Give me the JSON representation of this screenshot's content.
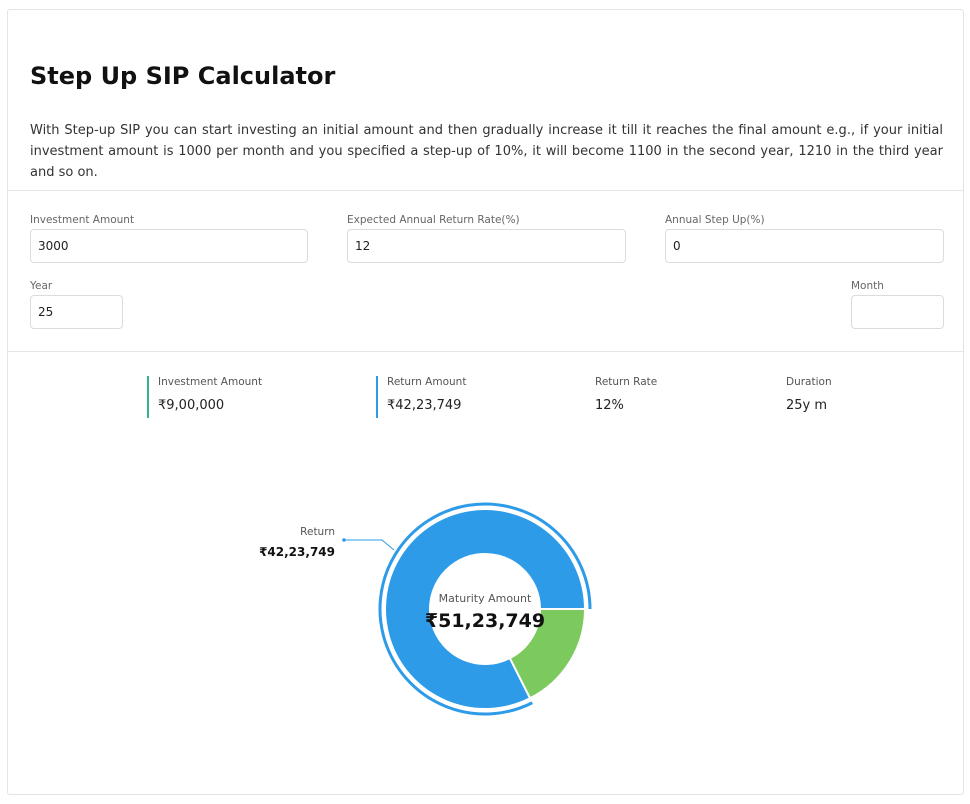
{
  "page": {
    "title": "Step Up SIP Calculator",
    "description": "With Step-up SIP you can start investing an initial amount and then gradually increase it till it reaches the final amount e.g., if your initial investment amount is 1000 per month and you specified a step-up of 10%, it will become 1100 in the second year, 1210 in the third year and so on."
  },
  "form": {
    "investment_amount": {
      "label": "Investment Amount",
      "value": "3000"
    },
    "return_rate": {
      "label": "Expected Annual Return Rate(%)",
      "value": "12"
    },
    "step_up": {
      "label": "Annual Step Up(%)",
      "value": "0"
    },
    "year": {
      "label": "Year",
      "value": "25"
    },
    "month": {
      "label": "Month",
      "value": ""
    }
  },
  "summary": {
    "investment": {
      "label": "Investment Amount",
      "value": "₹9,00,000"
    },
    "return_amount": {
      "label": "Return Amount",
      "value": "₹42,23,749"
    },
    "return_rate": {
      "label": "Return Rate",
      "value": "12%"
    },
    "duration": {
      "label": "Duration",
      "value": "25y m"
    }
  },
  "donut": {
    "center_label": "Maturity Amount",
    "center_value": "₹51,23,749",
    "callout_label": "Return",
    "callout_value": "₹42,23,749",
    "colors": {
      "return": "#2e9be8",
      "investment": "#7cc95e"
    }
  },
  "chart_data": {
    "type": "pie",
    "categories": [
      "Return",
      "Investment"
    ],
    "values": [
      4223749,
      900000
    ],
    "colors": [
      "#2e9be8",
      "#7cc95e"
    ]
  }
}
